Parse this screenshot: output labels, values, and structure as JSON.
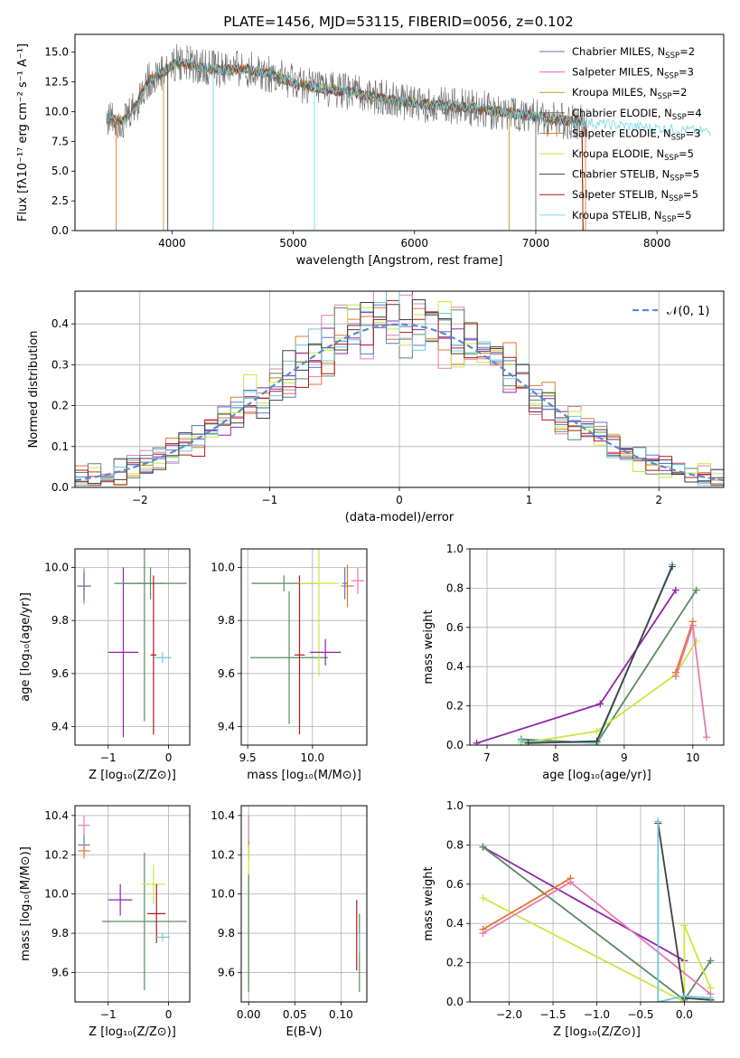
{
  "figure": {
    "title": "PLATE=1456, MJD=53115, FIBERID=0056, z=0.102"
  },
  "colors": {
    "chabrier_miles": "#5a78c8",
    "salpeter_miles": "#e066b8",
    "kroupa_miles": "#b8a02a",
    "chabrier_elodie": "#6a6a6a",
    "salpeter_elodie": "#e8762a",
    "kroupa_elodie": "#c8e840",
    "chabrier_stelib": "#404040",
    "salpeter_stelib": "#b01818",
    "kroupa_stelib": "#70d8e8",
    "normal": "#5a8ad0",
    "purple": "#8e24aa",
    "green": "#5a8a60",
    "pink": "#e87ab0",
    "orange": "#e8762a",
    "yellowgreen": "#c8e840",
    "teal": "#70c8d8",
    "blue": "#5a78c8",
    "red": "#b01818",
    "dark": "#404040"
  },
  "chart_data": [
    {
      "id": "spectrum",
      "type": "line",
      "title": "PLATE=1456, MJD=53115, FIBERID=0056, z=0.102",
      "xlabel": "wavelength [Angstrom, rest frame]",
      "ylabel": "Flux [fλ10⁻¹⁷ erg cm⁻² s⁻¹ A⁻¹]",
      "xlim": [
        3200,
        8550
      ],
      "ylim": [
        0,
        16.5
      ],
      "xticks": [
        "4000",
        "5000",
        "6000",
        "7000",
        "8000"
      ],
      "yticks": [
        "0.0",
        "2.5",
        "5.0",
        "7.5",
        "10.0",
        "12.5",
        "15.0"
      ],
      "legend_position": "top-right",
      "legend": [
        {
          "label": "Chabrier MILES, N",
          "sub": "SSP",
          "n": "=2",
          "color": "chabrier_miles"
        },
        {
          "label": "Salpeter MILES, N",
          "sub": "SSP",
          "n": "=3",
          "color": "salpeter_miles"
        },
        {
          "label": "Kroupa MILES, N",
          "sub": "SSP",
          "n": "=2",
          "color": "kroupa_miles"
        },
        {
          "label": "Chabrier ELODIE, N",
          "sub": "SSP",
          "n": "=4",
          "color": "chabrier_elodie"
        },
        {
          "label": "Salpeter ELODIE, N",
          "sub": "SSP",
          "n": "=3",
          "color": "salpeter_elodie"
        },
        {
          "label": "Kroupa ELODIE, N",
          "sub": "SSP",
          "n": "=5",
          "color": "kroupa_elodie"
        },
        {
          "label": "Chabrier STELIB, N",
          "sub": "SSP",
          "n": "=5",
          "color": "chabrier_stelib"
        },
        {
          "label": "Salpeter STELIB, N",
          "sub": "SSP",
          "n": "=5",
          "color": "salpeter_stelib"
        },
        {
          "label": "Kroupa STELIB, N",
          "sub": "SSP",
          "n": "=5",
          "color": "kroupa_stelib"
        }
      ],
      "continuum": [
        [
          3450,
          9.5
        ],
        [
          3600,
          9.2
        ],
        [
          3700,
          10.5
        ],
        [
          3800,
          12.5
        ],
        [
          3950,
          13.5
        ],
        [
          4050,
          14.2
        ],
        [
          4200,
          13.8
        ],
        [
          4400,
          13.5
        ],
        [
          4600,
          13.6
        ],
        [
          4800,
          13.2
        ],
        [
          5000,
          12.4
        ],
        [
          5200,
          12.0
        ],
        [
          5500,
          11.6
        ],
        [
          5800,
          11.0
        ],
        [
          6100,
          10.6
        ],
        [
          6400,
          10.4
        ],
        [
          6700,
          10.0
        ],
        [
          7000,
          9.6
        ],
        [
          7300,
          9.2
        ],
        [
          7600,
          8.9
        ],
        [
          8000,
          8.6
        ],
        [
          8450,
          8.3
        ]
      ]
    },
    {
      "id": "residuals",
      "type": "line",
      "xlabel": "(data-model)/error",
      "ylabel": "Normed distribution",
      "xlim": [
        -2.5,
        2.5
      ],
      "ylim": [
        0,
        0.48
      ],
      "xticks": [
        "−2",
        "−1",
        "0",
        "1",
        "2"
      ],
      "yticks": [
        "0.0",
        "0.1",
        "0.2",
        "0.3",
        "0.4"
      ],
      "legend_position": "top-right",
      "legend": [
        {
          "label": "𝒩(0, 1)",
          "color": "normal"
        }
      ],
      "bin_width": 0.1
    },
    {
      "id": "z_age",
      "type": "scatter",
      "xlabel": "Z [log₁₀(Z/Z⊙)]",
      "ylabel": "age  [log₁₀(age/yr)]",
      "xlim": [
        -1.55,
        0.35
      ],
      "ylim": [
        9.33,
        10.07
      ],
      "xticks": [
        "−1",
        "0"
      ],
      "yticks": [
        "9.4",
        "9.6",
        "9.8",
        "10.0"
      ],
      "points": [
        {
          "x": -1.4,
          "y": 9.93,
          "xerr": 0.12,
          "yerr": 0.07,
          "color": "pink"
        },
        {
          "x": -1.4,
          "y": 9.93,
          "xerr": 0.12,
          "yerr": 0.06,
          "color": "orange"
        },
        {
          "x": -1.4,
          "y": 9.93,
          "xerr": 0.1,
          "yerr": 0.05,
          "color": "blue"
        },
        {
          "x": -0.75,
          "y": 9.68,
          "xerr": 0.25,
          "yerr": 0.32,
          "color": "purple"
        },
        {
          "x": -0.4,
          "y": 9.94,
          "xerr": 0.35,
          "yerr": 0.52,
          "color": "green"
        },
        {
          "x": -0.3,
          "y": 9.94,
          "xerr": 0.6,
          "yerr": 0.06,
          "color": "green"
        },
        {
          "x": -0.25,
          "y": 9.67,
          "xerr": 0.05,
          "yerr": 0.3,
          "color": "red"
        },
        {
          "x": -0.1,
          "y": 9.66,
          "xerr": 0.15,
          "yerr": 0.02,
          "color": "teal"
        }
      ]
    },
    {
      "id": "mass_age",
      "type": "scatter",
      "xlabel": "mass [log₁₀(M/M⊙)]",
      "ylabel": "",
      "xlim": [
        9.45,
        10.42
      ],
      "ylim": [
        9.33,
        10.07
      ],
      "xticks": [
        "9.5",
        "10.0"
      ],
      "yticks": [
        "9.4",
        "9.6",
        "9.8",
        "10.0"
      ],
      "points": [
        {
          "x": 9.78,
          "y": 9.94,
          "xerr": 0.25,
          "yerr": 0.03,
          "color": "green"
        },
        {
          "x": 9.82,
          "y": 9.66,
          "xerr": 0.3,
          "yerr": 0.25,
          "color": "green"
        },
        {
          "x": 9.9,
          "y": 9.67,
          "xerr": 0.04,
          "yerr": 0.3,
          "color": "red"
        },
        {
          "x": 10.05,
          "y": 9.94,
          "xerr": 0.15,
          "yerr": 0.35,
          "color": "yellowgreen"
        },
        {
          "x": 10.1,
          "y": 9.68,
          "xerr": 0.12,
          "yerr": 0.05,
          "color": "purple"
        },
        {
          "x": 10.27,
          "y": 9.93,
          "xerr": 0.05,
          "yerr": 0.08,
          "color": "orange"
        },
        {
          "x": 10.35,
          "y": 9.95,
          "xerr": 0.05,
          "yerr": 0.05,
          "color": "pink"
        },
        {
          "x": 10.25,
          "y": 9.94,
          "xerr": 0.02,
          "yerr": 0.06,
          "color": "blue"
        }
      ]
    },
    {
      "id": "age_weight",
      "type": "line",
      "xlabel": "age  [log₁₀(age/yr)]",
      "ylabel": "mass weight",
      "xlim": [
        6.75,
        10.45
      ],
      "ylim": [
        0,
        1.0
      ],
      "xticks": [
        "7",
        "8",
        "9",
        "10"
      ],
      "yticks": [
        "0.0",
        "0.2",
        "0.4",
        "0.6",
        "0.8",
        "1.0"
      ],
      "series": [
        {
          "color": "purple",
          "x": [
            6.85,
            8.65,
            9.75
          ],
          "y": [
            0.01,
            0.21,
            0.79
          ]
        },
        {
          "color": "green",
          "x": [
            7.5,
            8.6,
            10.05
          ],
          "y": [
            0.03,
            0.01,
            0.79
          ]
        },
        {
          "color": "yellowgreen",
          "x": [
            7.5,
            8.6,
            9.75,
            10.05
          ],
          "y": [
            0.01,
            0.07,
            0.36,
            0.53
          ]
        },
        {
          "color": "orange",
          "x": [
            9.75,
            10.0
          ],
          "y": [
            0.37,
            0.63
          ]
        },
        {
          "color": "pink",
          "x": [
            9.75,
            10.0,
            10.2
          ],
          "y": [
            0.35,
            0.61,
            0.04
          ]
        },
        {
          "color": "teal",
          "x": [
            7.5,
            8.6,
            9.7
          ],
          "y": [
            0.02,
            0.01,
            0.92
          ]
        },
        {
          "color": "dark",
          "x": [
            7.6,
            8.6,
            9.7
          ],
          "y": [
            0.01,
            0.02,
            0.91
          ]
        }
      ]
    },
    {
      "id": "z_mass",
      "type": "scatter",
      "xlabel": "Z [log₁₀(Z/Z⊙)]",
      "ylabel": "mass [log₁₀(M/M⊙)]",
      "xlim": [
        -1.55,
        0.35
      ],
      "ylim": [
        9.45,
        10.45
      ],
      "xticks": [
        "−1",
        "0"
      ],
      "yticks": [
        "9.6",
        "9.8",
        "10.0",
        "10.2",
        "10.4"
      ],
      "points": [
        {
          "x": -1.4,
          "y": 10.35,
          "xerr": 0.1,
          "yerr": 0.05,
          "color": "pink"
        },
        {
          "x": -1.4,
          "y": 10.25,
          "xerr": 0.1,
          "yerr": 0.05,
          "color": "blue"
        },
        {
          "x": -1.4,
          "y": 10.22,
          "xerr": 0.1,
          "yerr": 0.04,
          "color": "orange"
        },
        {
          "x": -0.8,
          "y": 9.97,
          "xerr": 0.2,
          "yerr": 0.08,
          "color": "purple"
        },
        {
          "x": -0.4,
          "y": 9.86,
          "xerr": 0.7,
          "yerr": 0.35,
          "color": "green"
        },
        {
          "x": -0.25,
          "y": 10.05,
          "xerr": 0.2,
          "yerr": 0.1,
          "color": "yellowgreen"
        },
        {
          "x": -0.2,
          "y": 9.9,
          "xerr": 0.15,
          "yerr": 0.15,
          "color": "red"
        },
        {
          "x": -0.1,
          "y": 9.78,
          "xerr": 0.12,
          "yerr": 0.02,
          "color": "teal"
        }
      ]
    },
    {
      "id": "ebv_mass",
      "type": "scatter",
      "xlabel": "E(B-V)",
      "ylabel": "",
      "xlim": [
        -0.008,
        0.128
      ],
      "ylim": [
        9.45,
        10.45
      ],
      "xticks": [
        "0.00",
        "0.05",
        "0.10"
      ],
      "yticks": [
        "9.6",
        "9.8",
        "10.0",
        "10.2",
        "10.4"
      ],
      "points": [
        {
          "x": 0.0,
          "y": 10.3,
          "xerr": 0.0,
          "yerr": 0.1,
          "color": "pink"
        },
        {
          "x": 0.0,
          "y": 10.22,
          "xerr": 0.0,
          "yerr": 0.05,
          "color": "orange"
        },
        {
          "x": 0.0,
          "y": 9.9,
          "xerr": 0.0,
          "yerr": 0.35,
          "color": "yellowgreen"
        },
        {
          "x": 0.0,
          "y": 9.8,
          "xerr": 0.0,
          "yerr": 0.3,
          "color": "green"
        },
        {
          "x": 0.117,
          "y": 9.79,
          "xerr": 0.0,
          "yerr": 0.18,
          "color": "red"
        },
        {
          "x": 0.12,
          "y": 9.7,
          "xerr": 0.0,
          "yerr": 0.2,
          "color": "green"
        },
        {
          "x": 0.12,
          "y": 9.75,
          "xerr": 0.0,
          "yerr": 0.05,
          "color": "teal"
        }
      ]
    },
    {
      "id": "z_weight",
      "type": "line",
      "xlabel": "Z [log₁₀(Z/Z⊙)]",
      "ylabel": "mass weight",
      "xlim": [
        -2.45,
        0.45
      ],
      "ylim": [
        0,
        1.0
      ],
      "xticks": [
        "−2.0",
        "−1.5",
        "−1.0",
        "−0.5",
        "0.0"
      ],
      "yticks": [
        "0.0",
        "0.2",
        "0.4",
        "0.6",
        "0.8",
        "1.0"
      ],
      "series": [
        {
          "color": "purple",
          "x": [
            -2.3,
            0.0
          ],
          "y": [
            0.79,
            0.21
          ]
        },
        {
          "color": "green",
          "x": [
            -2.3,
            0.0,
            0.3
          ],
          "y": [
            0.79,
            0.01,
            0.21
          ]
        },
        {
          "color": "yellowgreen",
          "x": [
            -2.3,
            0.0,
            0.0,
            0.3
          ],
          "y": [
            0.53,
            0.0,
            0.39,
            0.07
          ]
        },
        {
          "color": "orange",
          "x": [
            -2.3,
            -1.3
          ],
          "y": [
            0.37,
            0.63
          ]
        },
        {
          "color": "pink",
          "x": [
            -2.3,
            -1.3,
            0.3
          ],
          "y": [
            0.35,
            0.61,
            0.04
          ]
        },
        {
          "color": "dark",
          "x": [
            -0.3,
            0.0,
            0.3
          ],
          "y": [
            0.91,
            0.02,
            0.01
          ]
        },
        {
          "color": "teal",
          "x": [
            -0.3,
            -0.3,
            0.0,
            0.3
          ],
          "y": [
            0.92,
            0.0,
            0.03,
            0.02
          ]
        }
      ]
    }
  ]
}
